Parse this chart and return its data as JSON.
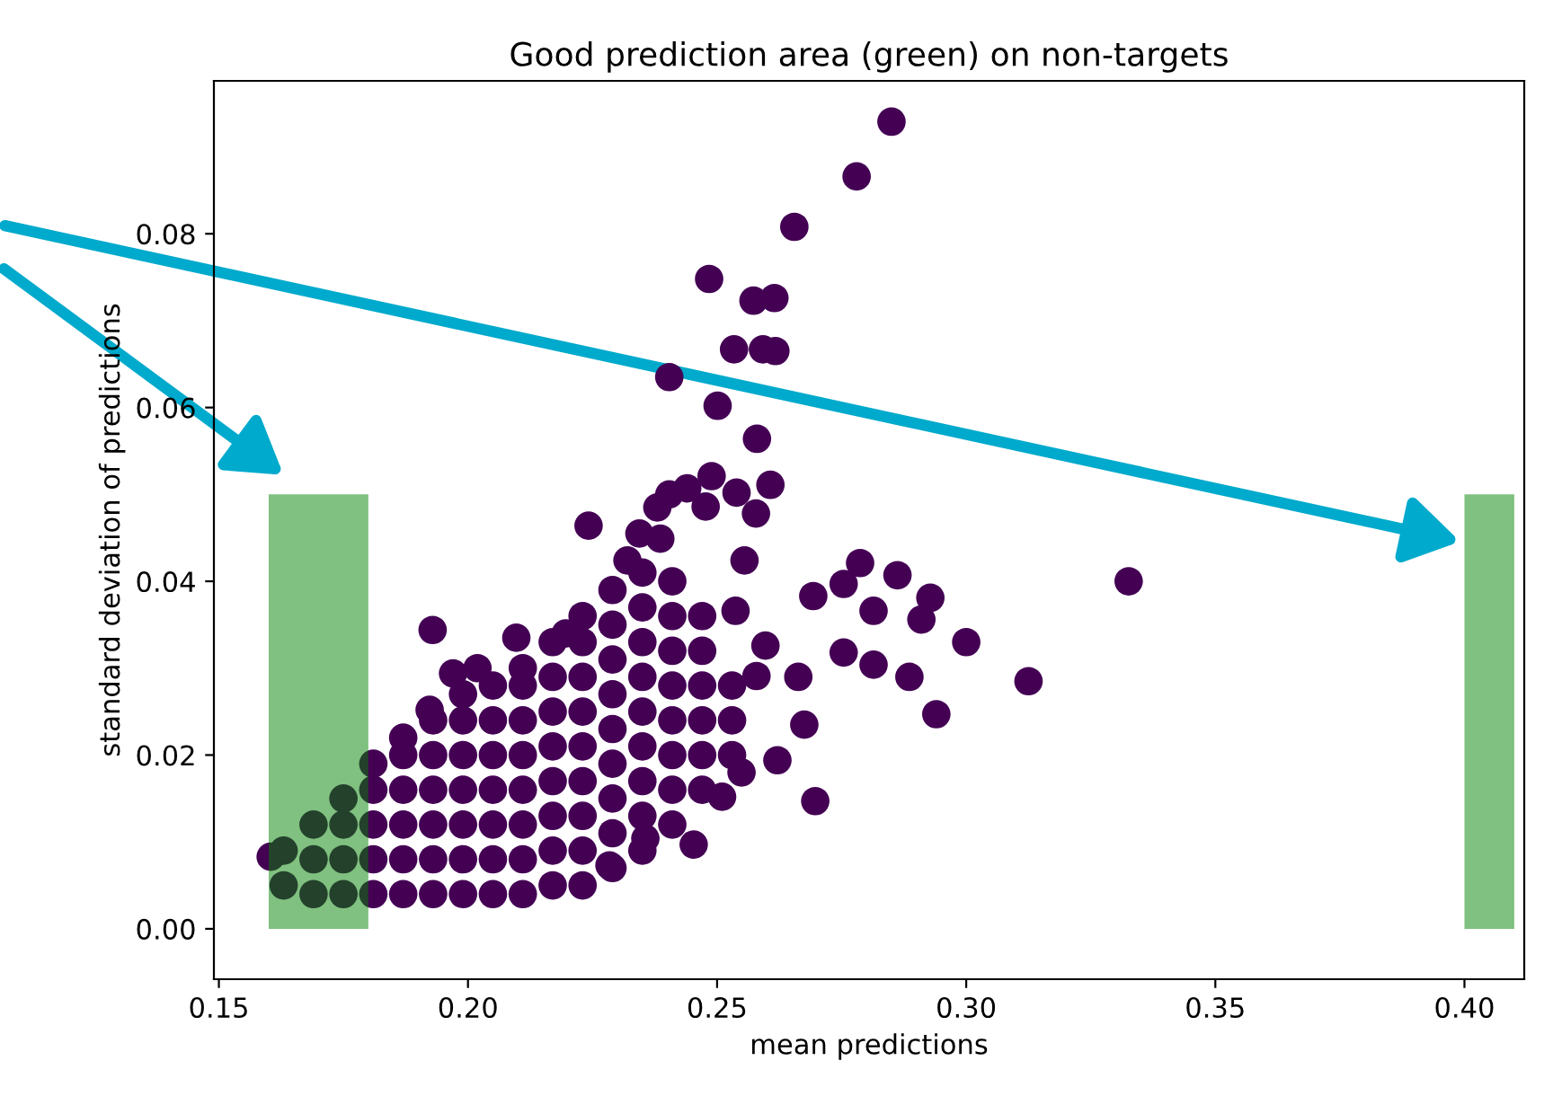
{
  "chart_data": {
    "type": "scatter",
    "title": "Good prediction area (green) on non-targets",
    "xlabel": "mean predictions",
    "ylabel": "standard deviation of predictions",
    "xlim": [
      0.149,
      0.412
    ],
    "ylim": [
      -0.0058,
      0.0976
    ],
    "xticks": [
      0.15,
      {
        "value": 0.2,
        "label": "0.20"
      },
      0.25,
      {
        "value": 0.3,
        "label": "0.30"
      },
      0.35,
      {
        "value": 0.4,
        "label": "0.40"
      }
    ],
    "yticks": [
      {
        "value": 0,
        "label": "0.00"
      },
      {
        "value": 0.02,
        "label": "0.02"
      },
      {
        "value": 0.04,
        "label": "0.04"
      },
      {
        "value": 0.06,
        "label": "0.06"
      },
      {
        "value": 0.08,
        "label": "0.08"
      }
    ],
    "grid": false,
    "series": [
      {
        "marker": "circle",
        "color": "#440154",
        "x": [
          0.163,
          0.163,
          0.169,
          0.169,
          0.169,
          0.175,
          0.175,
          0.175,
          0.175,
          0.181,
          0.181,
          0.181,
          0.181,
          0.181,
          0.187,
          0.187,
          0.187,
          0.187,
          0.187,
          0.187,
          0.193,
          0.193,
          0.193,
          0.193,
          0.193,
          0.193,
          0.199,
          0.199,
          0.199,
          0.199,
          0.199,
          0.199,
          0.199,
          0.205,
          0.205,
          0.205,
          0.205,
          0.205,
          0.205,
          0.205,
          0.211,
          0.211,
          0.211,
          0.211,
          0.211,
          0.211,
          0.211,
          0.211,
          0.217,
          0.217,
          0.217,
          0.217,
          0.217,
          0.217,
          0.217,
          0.217,
          0.223,
          0.223,
          0.223,
          0.223,
          0.223,
          0.223,
          0.223,
          0.223,
          0.223,
          0.229,
          0.229,
          0.229,
          0.229,
          0.229,
          0.229,
          0.229,
          0.229,
          0.229,
          0.235,
          0.235,
          0.235,
          0.235,
          0.235,
          0.235,
          0.235,
          0.235,
          0.235,
          0.241,
          0.241,
          0.241,
          0.241,
          0.241,
          0.241,
          0.241,
          0.241,
          0.247,
          0.247,
          0.247,
          0.247,
          0.247,
          0.247,
          0.253,
          0.253,
          0.253,
          0.1604,
          0.197,
          0.2019,
          0.1923,
          0.1929,
          0.2196,
          0.2097,
          0.232,
          0.2555,
          0.2537,
          0.2597,
          0.2579,
          0.2549,
          0.2621,
          0.2675,
          0.2663,
          0.2693,
          0.2754,
          0.2787,
          0.2862,
          0.2814,
          0.2928,
          0.291,
          0.3,
          0.2814,
          0.2754,
          0.2886,
          0.294,
          0.3125,
          0.3326,
          0.2697,
          0.251,
          0.2453,
          0.2356,
          0.2284,
          0.2242,
          0.2344,
          0.2386,
          0.238,
          0.2404,
          0.244,
          0.2477,
          0.2489,
          0.2539,
          0.2578,
          0.2607,
          0.258,
          0.2501,
          0.2404,
          0.2534,
          0.2592,
          0.2617,
          0.2573,
          0.2615,
          0.2484,
          0.2655,
          0.278,
          0.285
        ],
        "values": [
          0.005,
          0.009,
          0.004,
          0.008,
          0.012,
          0.004,
          0.008,
          0.012,
          0.015,
          0.004,
          0.008,
          0.012,
          0.016,
          0.019,
          0.004,
          0.008,
          0.012,
          0.016,
          0.02,
          0.022,
          0.004,
          0.008,
          0.012,
          0.016,
          0.02,
          0.024,
          0.004,
          0.008,
          0.012,
          0.016,
          0.02,
          0.024,
          0.027,
          0.004,
          0.008,
          0.012,
          0.016,
          0.02,
          0.024,
          0.028,
          0.004,
          0.008,
          0.012,
          0.016,
          0.02,
          0.024,
          0.028,
          0.03,
          0.005,
          0.009,
          0.013,
          0.017,
          0.021,
          0.025,
          0.029,
          0.033,
          0.005,
          0.009,
          0.013,
          0.017,
          0.021,
          0.025,
          0.029,
          0.033,
          0.036,
          0.007,
          0.011,
          0.015,
          0.019,
          0.023,
          0.027,
          0.031,
          0.035,
          0.039,
          0.009,
          0.013,
          0.017,
          0.021,
          0.025,
          0.029,
          0.033,
          0.037,
          0.041,
          0.012,
          0.016,
          0.02,
          0.024,
          0.028,
          0.032,
          0.036,
          0.04,
          0.016,
          0.02,
          0.024,
          0.028,
          0.032,
          0.036,
          0.02,
          0.024,
          0.028,
          0.0083,
          0.0294,
          0.03,
          0.0252,
          0.0344,
          0.034,
          0.0335,
          0.0424,
          0.0424,
          0.0366,
          0.0326,
          0.0291,
          0.018,
          0.0194,
          0.0235,
          0.029,
          0.0383,
          0.0397,
          0.0421,
          0.0407,
          0.0366,
          0.0381,
          0.0356,
          0.033,
          0.0304,
          0.0318,
          0.029,
          0.0247,
          0.0285,
          0.04,
          0.0147,
          0.0152,
          0.0097,
          0.0104,
          0.0073,
          0.0464,
          0.0455,
          0.0449,
          0.0485,
          0.05,
          0.0507,
          0.0486,
          0.0521,
          0.0502,
          0.0478,
          0.0511,
          0.0564,
          0.0602,
          0.0635,
          0.0667,
          0.0667,
          0.0665,
          0.0723,
          0.0726,
          0.0748,
          0.0808,
          0.0866,
          0.0929
        ]
      },
      {
        "type": "area",
        "color": "#80c080",
        "x": [
          0.16,
          0.18
        ],
        "values": [
          0.05,
          0.05
        ]
      },
      {
        "type": "area",
        "color": "#80c080",
        "x": [
          0.4,
          0.41
        ],
        "values": [
          0.05,
          0.05
        ]
      }
    ]
  }
}
